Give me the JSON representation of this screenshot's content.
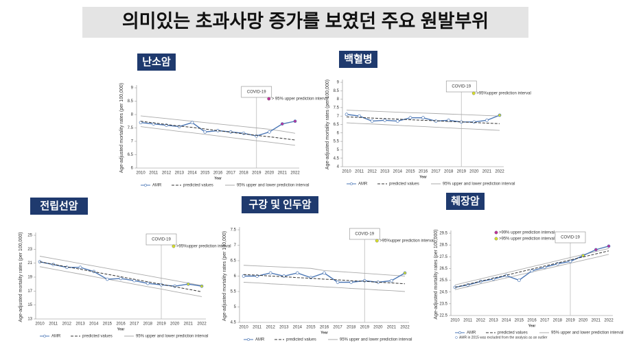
{
  "title": "의미있는 초과사망 증가를 보였던 주요 원발부위",
  "chart_data": [
    {
      "type": "line",
      "title": "난소암",
      "ylabel": "Age-adjusted mortality rates (per 100,000)",
      "xlabel": "Year",
      "categories": [
        "2010",
        "2011",
        "2012",
        "2013",
        "2014",
        "2015",
        "2016",
        "2017",
        "2018",
        "2019",
        "2020",
        "2021",
        "2022"
      ],
      "ylim": [
        6,
        9
      ],
      "yticks": [
        6,
        6.5,
        7,
        7.5,
        8,
        8.5,
        9
      ],
      "series": [
        {
          "name": "AMR",
          "color": "#4a76b5",
          "values": [
            7.7,
            7.65,
            7.6,
            7.55,
            7.7,
            7.35,
            7.4,
            7.35,
            7.3,
            7.2,
            7.35,
            7.65,
            7.75
          ],
          "marker_colors": [
            "#ffffff",
            "#ffffff",
            "#ffffff",
            "#ffffff",
            "#ffffff",
            "#ffffff",
            "#ffffff",
            "#ffffff",
            "#ffffff",
            "#ffffff",
            "#ffffff",
            "#c0309a",
            "#c0309a"
          ]
        },
        {
          "name": "predicted values",
          "color": "#333333",
          "dashed": true,
          "values": [
            7.75,
            7.69,
            7.63,
            7.57,
            7.52,
            7.46,
            7.4,
            7.34,
            7.28,
            7.22,
            7.17,
            7.11,
            7.05
          ]
        }
      ],
      "interval": {
        "name": "95% upper and lower prediction interval",
        "color": "#aaaaaa",
        "upper": [
          7.95,
          7.9,
          7.85,
          7.8,
          7.75,
          7.7,
          7.65,
          7.6,
          7.55,
          7.5,
          7.45,
          7.38,
          7.3
        ],
        "lower": [
          7.55,
          7.49,
          7.43,
          7.37,
          7.32,
          7.26,
          7.2,
          7.14,
          7.08,
          7.02,
          6.97,
          6.91,
          6.85
        ]
      },
      "vline": {
        "label": "COVID-19",
        "category": "2019"
      },
      "marker_legend": [
        {
          "label": "> 95% upper prediction interval",
          "color": "#c0309a"
        }
      ]
    },
    {
      "type": "line",
      "title": "백혈병",
      "ylabel": "Age-adjusted mortality rates (per 100,000)",
      "xlabel": "Year",
      "categories": [
        "2010",
        "2011",
        "2012",
        "2013",
        "2014",
        "2015",
        "2016",
        "2017",
        "2018",
        "2019",
        "2020",
        "2021",
        "2022"
      ],
      "ylim": [
        4,
        9
      ],
      "yticks": [
        4,
        4.5,
        5,
        5.5,
        6,
        6.5,
        7,
        7.5,
        8,
        8.5,
        9
      ],
      "series": [
        {
          "name": "AMR",
          "color": "#4a76b5",
          "values": [
            7.1,
            7.0,
            6.7,
            6.75,
            6.7,
            6.9,
            6.9,
            6.7,
            6.75,
            6.65,
            6.65,
            6.75,
            7.05
          ],
          "marker_colors": [
            "#ffffff",
            "#ffffff",
            "#ffffff",
            "#ffffff",
            "#ffffff",
            "#ffffff",
            "#ffffff",
            "#ffffff",
            "#ffffff",
            "#ffffff",
            "#ffffff",
            "#ffffff",
            "#d8e02a"
          ]
        },
        {
          "name": "predicted values",
          "color": "#333333",
          "dashed": true,
          "values": [
            6.95,
            6.92,
            6.88,
            6.85,
            6.82,
            6.78,
            6.75,
            6.72,
            6.68,
            6.65,
            6.62,
            6.58,
            6.55
          ]
        }
      ],
      "interval": {
        "name": "95% upper and lower prediction interval",
        "color": "#aaaaaa",
        "upper": [
          7.35,
          7.32,
          7.29,
          7.26,
          7.23,
          7.2,
          7.18,
          7.15,
          7.12,
          7.09,
          7.06,
          7.03,
          7.0
        ],
        "lower": [
          6.6,
          6.56,
          6.53,
          6.49,
          6.45,
          6.41,
          6.38,
          6.34,
          6.3,
          6.26,
          6.23,
          6.19,
          6.15
        ]
      },
      "vline": {
        "label": "COVID-19",
        "category": "2019"
      },
      "marker_legend": [
        {
          "label": ">95%upper prediction interval",
          "color": "#d8e02a"
        }
      ]
    },
    {
      "type": "line",
      "title": "전립선암",
      "ylabel": "Age-adjusted mortality rates (per 100,000)",
      "xlabel": "Year",
      "categories": [
        "2010",
        "2011",
        "2012",
        "2013",
        "2014",
        "2015",
        "2016",
        "2017",
        "2018",
        "2019",
        "2020",
        "2021",
        "2022"
      ],
      "ylim": [
        13,
        25
      ],
      "yticks": [
        13,
        15,
        17,
        19,
        21,
        23,
        25
      ],
      "series": [
        {
          "name": "AMR",
          "color": "#4a76b5",
          "values": [
            21.2,
            20.8,
            20.4,
            20.4,
            19.8,
            18.7,
            18.8,
            18.5,
            18.1,
            17.9,
            17.7,
            18.0,
            17.7
          ],
          "marker_colors": [
            "#ffffff",
            "#ffffff",
            "#ffffff",
            "#ffffff",
            "#ffffff",
            "#ffffff",
            "#ffffff",
            "#ffffff",
            "#ffffff",
            "#ffffff",
            "#ffffff",
            "#d8e02a",
            "#d8e02a"
          ]
        },
        {
          "name": "predicted values",
          "color": "#333333",
          "dashed": true,
          "values": [
            21.2,
            20.84,
            20.48,
            20.13,
            19.77,
            19.41,
            19.05,
            18.69,
            18.33,
            17.98,
            17.62,
            17.26,
            16.9
          ]
        }
      ],
      "interval": {
        "name": "95% upper and lower prediction interval",
        "color": "#aaaaaa",
        "upper": [
          22.0,
          21.65,
          21.3,
          20.95,
          20.6,
          20.25,
          19.9,
          19.55,
          19.2,
          18.85,
          18.5,
          18.15,
          17.8
        ],
        "lower": [
          20.5,
          20.14,
          19.78,
          19.43,
          19.07,
          18.71,
          18.35,
          17.99,
          17.63,
          17.28,
          16.92,
          16.56,
          16.2
        ]
      },
      "vline": {
        "label": "COVID-19",
        "category": "2019"
      },
      "marker_legend": [
        {
          "label": ">95%upper prediction interval",
          "color": "#d8e02a"
        }
      ]
    },
    {
      "type": "line",
      "title": "구강 및 인두암",
      "ylabel": "Age-adjusted mortality rates (per 100,000)",
      "xlabel": "Year",
      "categories": [
        "2010",
        "2011",
        "2012",
        "2013",
        "2014",
        "2015",
        "2016",
        "2017",
        "2018",
        "2019",
        "2020",
        "2021",
        "2022"
      ],
      "ylim": [
        4.5,
        7.5
      ],
      "yticks": [
        4.5,
        5,
        5.5,
        6,
        6.5,
        7,
        7.5
      ],
      "series": [
        {
          "name": "AMR",
          "color": "#4a76b5",
          "values": [
            6.0,
            6.0,
            6.1,
            6.0,
            6.1,
            5.95,
            6.1,
            5.8,
            5.8,
            5.85,
            5.8,
            5.85,
            6.1
          ],
          "marker_colors": [
            "#ffffff",
            "#ffffff",
            "#ffffff",
            "#ffffff",
            "#ffffff",
            "#ffffff",
            "#ffffff",
            "#ffffff",
            "#ffffff",
            "#ffffff",
            "#ffffff",
            "#ffffff",
            "#d8e02a"
          ]
        },
        {
          "name": "predicted values",
          "color": "#333333",
          "dashed": true,
          "values": [
            6.05,
            6.03,
            6.0,
            5.98,
            5.95,
            5.93,
            5.9,
            5.88,
            5.85,
            5.83,
            5.8,
            5.78,
            5.75
          ]
        }
      ],
      "interval": {
        "name": "95% upper and lower prediction interval",
        "color": "#aaaaaa",
        "upper": [
          6.35,
          6.33,
          6.31,
          6.29,
          6.27,
          6.25,
          6.18,
          6.15,
          6.12,
          6.09,
          6.06,
          6.03,
          6.0
        ],
        "lower": [
          5.8,
          5.78,
          5.75,
          5.73,
          5.7,
          5.68,
          5.65,
          5.63,
          5.6,
          5.58,
          5.55,
          5.53,
          5.5
        ]
      },
      "vline": {
        "label": "COVID-19",
        "category": "2019"
      },
      "marker_legend": [
        {
          "label": ">95%upper prediction interval",
          "color": "#d8e02a"
        }
      ]
    },
    {
      "type": "line",
      "title": "췌장암",
      "ylabel": "Age-adjusted mortality rates (per 100,000)",
      "xlabel": "Year",
      "categories": [
        "2010",
        "2011",
        "2012",
        "2013",
        "2014",
        "2015",
        "2016",
        "2017",
        "2018",
        "2019",
        "2020",
        "2021",
        "2022"
      ],
      "ylim": [
        22.5,
        29.5
      ],
      "yticks": [
        22.5,
        23.5,
        24.5,
        25.5,
        26.5,
        27.5,
        28.5,
        29.5
      ],
      "series": [
        {
          "name": "AMR",
          "color": "#4a76b5",
          "values": [
            24.9,
            25.1,
            25.4,
            25.6,
            25.9,
            25.5,
            26.3,
            26.6,
            26.9,
            27.1,
            27.6,
            28.1,
            28.4
          ],
          "marker_colors": [
            "#ffffff",
            "#ffffff",
            "#ffffff",
            "#ffffff",
            "#ffffff",
            "#ffffff",
            "#ffffff",
            "#ffffff",
            "#ffffff",
            "#ffffff",
            "#d8e02a",
            "#c0309a",
            "#c0309a"
          ]
        },
        {
          "name": "predicted values",
          "color": "#333333",
          "dashed": true,
          "values": [
            24.9,
            25.16,
            25.42,
            25.68,
            25.93,
            26.19,
            26.45,
            26.71,
            26.97,
            27.23,
            27.48,
            27.74,
            28.0
          ]
        }
      ],
      "interval": {
        "name": "95% upper and lower prediction interval",
        "color": "#aaaaaa",
        "upper": [
          25.1,
          25.36,
          25.62,
          25.88,
          26.13,
          26.39,
          26.65,
          26.91,
          27.17,
          27.43,
          27.68,
          27.94,
          28.2
        ],
        "lower": [
          24.7,
          24.95,
          25.2,
          25.45,
          25.7,
          25.95,
          26.2,
          26.45,
          26.7,
          26.95,
          27.2,
          27.45,
          27.7
        ]
      },
      "vline": {
        "label": "COVID-19",
        "category": "2019"
      },
      "marker_legend": [
        {
          "label": ">99% upper prediction interval",
          "color": "#c0309a"
        },
        {
          "label": ">95% upper prediction interval",
          "color": "#d8e02a"
        }
      ],
      "note": "AMR in 2015 was excluded from the analysis as an outlier"
    }
  ]
}
